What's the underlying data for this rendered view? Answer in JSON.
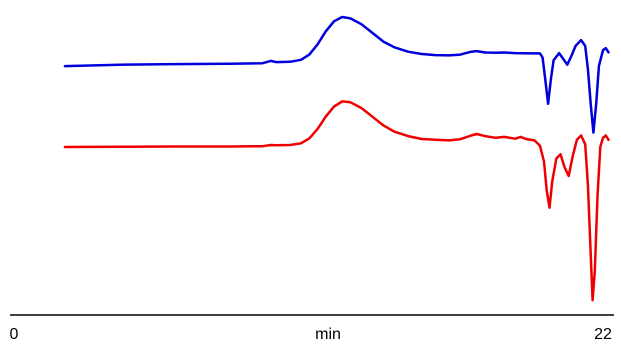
{
  "chart_data": {
    "type": "line",
    "title": "",
    "xlabel": "min",
    "ylabel": "",
    "xlim": [
      0,
      22
    ],
    "x_tick_labels": [
      "0",
      "22"
    ],
    "grid": false,
    "legend": "none",
    "series": [
      {
        "color": "#0000dd",
        "points": [
          [
            2.0,
            0.83
          ],
          [
            4.0,
            0.835
          ],
          [
            6.0,
            0.837
          ],
          [
            8.0,
            0.838
          ],
          [
            9.2,
            0.84
          ],
          [
            9.5,
            0.848
          ],
          [
            9.7,
            0.844
          ],
          [
            10.2,
            0.845
          ],
          [
            10.6,
            0.852
          ],
          [
            10.9,
            0.87
          ],
          [
            11.2,
            0.905
          ],
          [
            11.5,
            0.95
          ],
          [
            11.8,
            0.985
          ],
          [
            12.1,
            1.0
          ],
          [
            12.4,
            0.995
          ],
          [
            12.8,
            0.975
          ],
          [
            13.2,
            0.945
          ],
          [
            13.6,
            0.915
          ],
          [
            14.0,
            0.895
          ],
          [
            14.5,
            0.88
          ],
          [
            15.0,
            0.872
          ],
          [
            15.5,
            0.868
          ],
          [
            16.0,
            0.867
          ],
          [
            16.4,
            0.87
          ],
          [
            16.8,
            0.88
          ],
          [
            17.0,
            0.882
          ],
          [
            17.3,
            0.877
          ],
          [
            17.7,
            0.876
          ],
          [
            18.0,
            0.877
          ],
          [
            18.4,
            0.875
          ],
          [
            19.0,
            0.874
          ],
          [
            19.3,
            0.874
          ],
          [
            19.4,
            0.86
          ],
          [
            19.5,
            0.78
          ],
          [
            19.6,
            0.7
          ],
          [
            19.7,
            0.785
          ],
          [
            19.8,
            0.85
          ],
          [
            20.0,
            0.875
          ],
          [
            20.15,
            0.855
          ],
          [
            20.3,
            0.835
          ],
          [
            20.45,
            0.865
          ],
          [
            20.6,
            0.9
          ],
          [
            20.8,
            0.92
          ],
          [
            20.95,
            0.9
          ],
          [
            21.05,
            0.82
          ],
          [
            21.15,
            0.7
          ],
          [
            21.25,
            0.6
          ],
          [
            21.35,
            0.7
          ],
          [
            21.45,
            0.83
          ],
          [
            21.6,
            0.885
          ],
          [
            21.7,
            0.892
          ],
          [
            21.8,
            0.878
          ]
        ]
      },
      {
        "color": "#ee0000",
        "points": [
          [
            2.0,
            0.55
          ],
          [
            4.0,
            0.551
          ],
          [
            6.0,
            0.552
          ],
          [
            8.0,
            0.552
          ],
          [
            9.2,
            0.553
          ],
          [
            9.5,
            0.557
          ],
          [
            9.7,
            0.556
          ],
          [
            10.2,
            0.557
          ],
          [
            10.6,
            0.563
          ],
          [
            10.9,
            0.58
          ],
          [
            11.2,
            0.612
          ],
          [
            11.5,
            0.655
          ],
          [
            11.8,
            0.69
          ],
          [
            12.1,
            0.708
          ],
          [
            12.4,
            0.705
          ],
          [
            12.8,
            0.685
          ],
          [
            13.2,
            0.655
          ],
          [
            13.6,
            0.625
          ],
          [
            14.0,
            0.603
          ],
          [
            14.5,
            0.588
          ],
          [
            15.0,
            0.578
          ],
          [
            15.5,
            0.575
          ],
          [
            16.0,
            0.573
          ],
          [
            16.4,
            0.577
          ],
          [
            16.8,
            0.59
          ],
          [
            17.0,
            0.595
          ],
          [
            17.3,
            0.588
          ],
          [
            17.7,
            0.582
          ],
          [
            18.0,
            0.585
          ],
          [
            18.4,
            0.579
          ],
          [
            18.6,
            0.585
          ],
          [
            18.8,
            0.578
          ],
          [
            19.1,
            0.573
          ],
          [
            19.3,
            0.555
          ],
          [
            19.45,
            0.5
          ],
          [
            19.55,
            0.4
          ],
          [
            19.65,
            0.34
          ],
          [
            19.75,
            0.43
          ],
          [
            19.9,
            0.51
          ],
          [
            20.05,
            0.525
          ],
          [
            20.2,
            0.48
          ],
          [
            20.35,
            0.45
          ],
          [
            20.5,
            0.52
          ],
          [
            20.65,
            0.575
          ],
          [
            20.8,
            0.59
          ],
          [
            20.95,
            0.56
          ],
          [
            21.05,
            0.42
          ],
          [
            21.15,
            0.18
          ],
          [
            21.22,
            0.02
          ],
          [
            21.3,
            0.12
          ],
          [
            21.4,
            0.38
          ],
          [
            21.5,
            0.55
          ],
          [
            21.6,
            0.582
          ],
          [
            21.7,
            0.59
          ],
          [
            21.8,
            0.575
          ]
        ]
      }
    ]
  }
}
